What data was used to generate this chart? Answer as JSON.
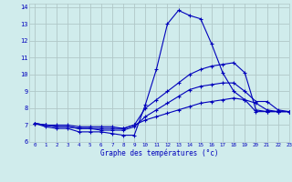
{
  "title": "Graphe des températures (°c)",
  "bg_color": "#d0ecec",
  "grid_color": "#b0c8c8",
  "line_color": "#0000bb",
  "xlim": [
    -0.5,
    23
  ],
  "ylim": [
    6,
    14.2
  ],
  "xticks": [
    0,
    1,
    2,
    3,
    4,
    5,
    6,
    7,
    8,
    9,
    10,
    11,
    12,
    13,
    14,
    15,
    16,
    17,
    18,
    19,
    20,
    21,
    22,
    23
  ],
  "yticks": [
    6,
    7,
    8,
    9,
    10,
    11,
    12,
    13,
    14
  ],
  "series1_x": [
    0,
    1,
    2,
    3,
    4,
    5,
    6,
    7,
    8,
    9,
    10,
    11,
    12,
    13,
    14,
    15,
    16,
    17,
    18,
    19,
    20,
    21,
    22,
    23
  ],
  "series1_y": [
    7.1,
    6.9,
    6.8,
    6.8,
    6.6,
    6.6,
    6.6,
    6.5,
    6.4,
    6.4,
    8.2,
    10.3,
    13.0,
    13.8,
    13.5,
    13.3,
    11.8,
    10.1,
    9.0,
    8.5,
    7.8,
    7.8,
    7.8,
    7.8
  ],
  "series2_x": [
    0,
    1,
    2,
    3,
    4,
    5,
    6,
    7,
    8,
    9,
    10,
    11,
    12,
    13,
    14,
    15,
    16,
    17,
    18,
    19,
    20,
    21,
    22,
    23
  ],
  "series2_y": [
    7.1,
    7.0,
    6.9,
    6.9,
    6.8,
    6.8,
    6.8,
    6.8,
    6.8,
    7.0,
    8.0,
    8.5,
    9.0,
    9.5,
    10.0,
    10.3,
    10.5,
    10.6,
    10.7,
    10.1,
    7.9,
    7.8,
    7.8,
    7.8
  ],
  "series3_x": [
    0,
    1,
    2,
    3,
    4,
    5,
    6,
    7,
    8,
    9,
    10,
    11,
    12,
    13,
    14,
    15,
    16,
    17,
    18,
    19,
    20,
    21,
    22,
    23
  ],
  "series3_y": [
    7.1,
    7.0,
    6.9,
    6.9,
    6.8,
    6.8,
    6.7,
    6.7,
    6.7,
    6.9,
    7.5,
    7.9,
    8.3,
    8.7,
    9.1,
    9.3,
    9.4,
    9.5,
    9.5,
    9.0,
    8.4,
    8.4,
    7.9,
    7.8
  ],
  "series4_x": [
    0,
    1,
    2,
    3,
    4,
    5,
    6,
    7,
    8,
    9,
    10,
    11,
    12,
    13,
    14,
    15,
    16,
    17,
    18,
    19,
    20,
    21,
    22,
    23
  ],
  "series4_y": [
    7.1,
    7.0,
    7.0,
    7.0,
    6.9,
    6.9,
    6.9,
    6.9,
    6.8,
    7.0,
    7.3,
    7.5,
    7.7,
    7.9,
    8.1,
    8.3,
    8.4,
    8.5,
    8.6,
    8.5,
    8.3,
    7.9,
    7.8,
    7.8
  ]
}
